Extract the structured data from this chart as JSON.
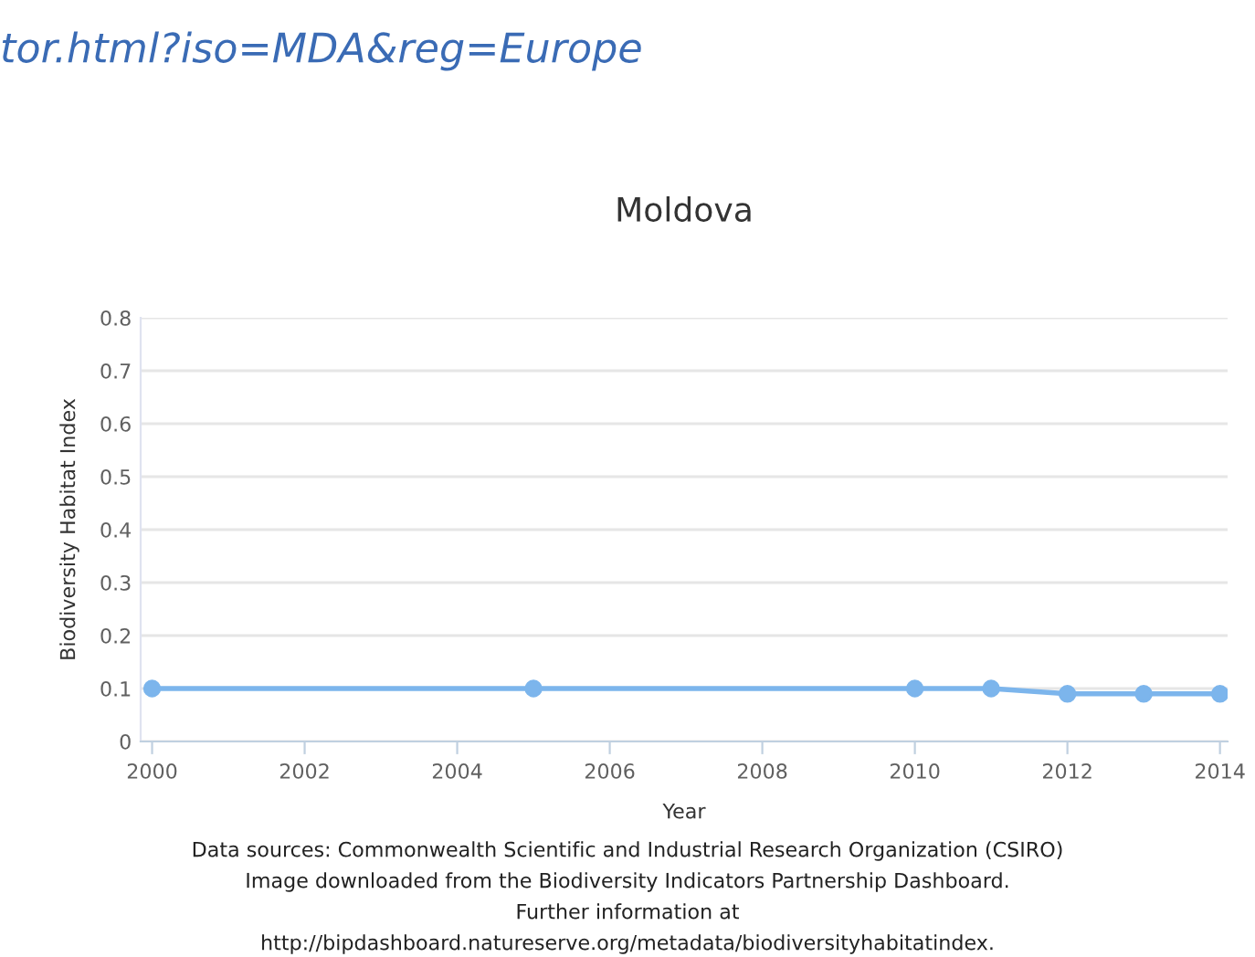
{
  "chart_data": {
    "type": "line",
    "title": "Moldova",
    "xlabel": "Year",
    "ylabel": "Biodiversity Habitat Index",
    "x": [
      2000,
      2005,
      2010,
      2011,
      2012,
      2013,
      2014
    ],
    "series": [
      {
        "color": "#7cb5ec",
        "values": [
          0.1,
          0.1,
          0.1,
          0.1,
          0.09,
          0.09,
          0.09
        ]
      }
    ],
    "xlim": [
      1999.85,
      2014.1
    ],
    "xticks": [
      2000,
      2002,
      2004,
      2006,
      2008,
      2010,
      2012,
      2014
    ],
    "ylim": [
      0,
      0.8
    ],
    "yticks": [
      0,
      0.1,
      0.2,
      0.3,
      0.4,
      0.5,
      0.6,
      0.7,
      0.8
    ],
    "grid": "y",
    "legend": false,
    "marker": "circle",
    "line_style": "solid",
    "annotations": [
      "tor.html?iso=MDA&reg=Europe",
      "Data sources: Commonwealth Scientific and Industrial Research Organization (CSIRO)",
      "Image downloaded from the Biodiversity Indicators Partnership Dashboard.",
      "Further information at",
      "http://bipdashboard.natureserve.org/metadata/biodiversityhabitatindex."
    ]
  }
}
